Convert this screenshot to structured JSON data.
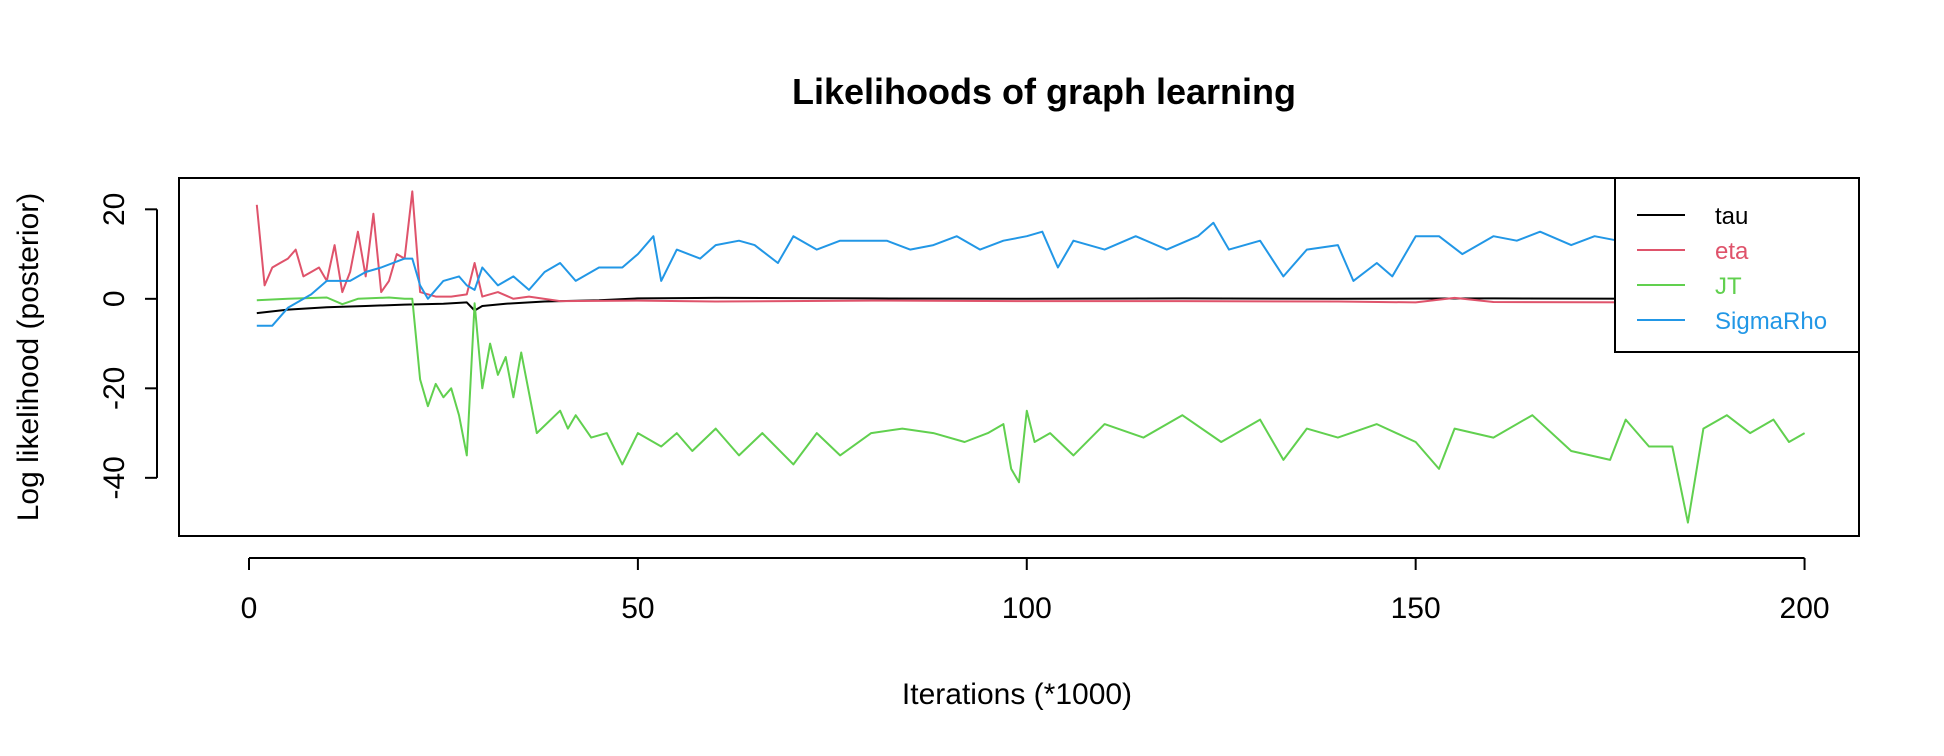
{
  "chart_data": {
    "type": "line",
    "title": "Likelihoods of graph learning",
    "xlabel": "Iterations (*1000)",
    "ylabel": "Log likelihood (posterior)",
    "xlim": [
      -9,
      207
    ],
    "ylim": [
      -53,
      27
    ],
    "x_ticks": [
      0,
      50,
      100,
      150,
      200
    ],
    "y_ticks": [
      20,
      0,
      -20,
      -40
    ],
    "grid": false,
    "legend_position": "top-right",
    "series": [
      {
        "name": "tau",
        "color": "#000000",
        "keypoints": [
          [
            1,
            -3.2
          ],
          [
            5,
            -2.4
          ],
          [
            10,
            -1.9
          ],
          [
            15,
            -1.6
          ],
          [
            20,
            -1.3
          ],
          [
            25,
            -1.1
          ],
          [
            28,
            -0.8
          ],
          [
            29,
            -2.6
          ],
          [
            30,
            -1.6
          ],
          [
            33,
            -1.1
          ],
          [
            38,
            -0.6
          ],
          [
            45,
            -0.3
          ],
          [
            50,
            0.1
          ],
          [
            60,
            0.2
          ],
          [
            80,
            0.1
          ],
          [
            100,
            0.0
          ],
          [
            120,
            0.1
          ],
          [
            140,
            0.0
          ],
          [
            160,
            0.1
          ],
          [
            180,
            0.0
          ],
          [
            200,
            0.0
          ]
        ]
      },
      {
        "name": "eta",
        "color": "#DF536B",
        "keypoints": [
          [
            1,
            21
          ],
          [
            2,
            3
          ],
          [
            3,
            7
          ],
          [
            4,
            8
          ],
          [
            5,
            9
          ],
          [
            6,
            11
          ],
          [
            7,
            5
          ],
          [
            8,
            6
          ],
          [
            9,
            7
          ],
          [
            10,
            4
          ],
          [
            11,
            12
          ],
          [
            12,
            1.5
          ],
          [
            13,
            6
          ],
          [
            14,
            15
          ],
          [
            15,
            5
          ],
          [
            16,
            19
          ],
          [
            17,
            1.5
          ],
          [
            18,
            4
          ],
          [
            19,
            10
          ],
          [
            20,
            9
          ],
          [
            21,
            24
          ],
          [
            22,
            1.5
          ],
          [
            24,
            0.5
          ],
          [
            26,
            0.5
          ],
          [
            28,
            1
          ],
          [
            29,
            8
          ],
          [
            30,
            0.5
          ],
          [
            32,
            1.5
          ],
          [
            34,
            0
          ],
          [
            36,
            0.5
          ],
          [
            40,
            -0.5
          ],
          [
            50,
            -0.4
          ],
          [
            60,
            -0.6
          ],
          [
            80,
            -0.4
          ],
          [
            100,
            -0.5
          ],
          [
            120,
            -0.5
          ],
          [
            140,
            -0.6
          ],
          [
            150,
            -0.8
          ],
          [
            155,
            0.2
          ],
          [
            160,
            -0.7
          ],
          [
            180,
            -0.8
          ],
          [
            200,
            -0.7
          ]
        ]
      },
      {
        "name": "JT",
        "color": "#61D04F",
        "keypoints": [
          [
            1,
            -0.3
          ],
          [
            5,
            0
          ],
          [
            10,
            0.3
          ],
          [
            12,
            -1.2
          ],
          [
            14,
            0
          ],
          [
            18,
            0.3
          ],
          [
            20,
            0
          ],
          [
            21,
            0
          ],
          [
            22,
            -18
          ],
          [
            23,
            -24
          ],
          [
            24,
            -19
          ],
          [
            25,
            -22
          ],
          [
            26,
            -20
          ],
          [
            27,
            -26
          ],
          [
            28,
            -35
          ],
          [
            29,
            -1
          ],
          [
            30,
            -20
          ],
          [
            31,
            -10
          ],
          [
            32,
            -17
          ],
          [
            33,
            -13
          ],
          [
            34,
            -22
          ],
          [
            35,
            -12
          ],
          [
            37,
            -30
          ],
          [
            40,
            -25
          ],
          [
            41,
            -29
          ],
          [
            42,
            -26
          ],
          [
            44,
            -31
          ],
          [
            46,
            -30
          ],
          [
            48,
            -37
          ],
          [
            50,
            -30
          ],
          [
            53,
            -33
          ],
          [
            55,
            -30
          ],
          [
            57,
            -34
          ],
          [
            60,
            -29
          ],
          [
            63,
            -35
          ],
          [
            66,
            -30
          ],
          [
            70,
            -37
          ],
          [
            73,
            -30
          ],
          [
            76,
            -35
          ],
          [
            80,
            -30
          ],
          [
            84,
            -29
          ],
          [
            88,
            -30
          ],
          [
            92,
            -32
          ],
          [
            95,
            -30
          ],
          [
            97,
            -28
          ],
          [
            98,
            -38
          ],
          [
            99,
            -41
          ],
          [
            100,
            -25
          ],
          [
            101,
            -32
          ],
          [
            103,
            -30
          ],
          [
            106,
            -35
          ],
          [
            110,
            -28
          ],
          [
            115,
            -31
          ],
          [
            120,
            -26
          ],
          [
            125,
            -32
          ],
          [
            130,
            -27
          ],
          [
            133,
            -36
          ],
          [
            136,
            -29
          ],
          [
            140,
            -31
          ],
          [
            145,
            -28
          ],
          [
            150,
            -32
          ],
          [
            153,
            -38
          ],
          [
            155,
            -29
          ],
          [
            160,
            -31
          ],
          [
            165,
            -26
          ],
          [
            170,
            -34
          ],
          [
            175,
            -36
          ],
          [
            177,
            -27
          ],
          [
            180,
            -33
          ],
          [
            183,
            -33
          ],
          [
            185,
            -50
          ],
          [
            187,
            -29
          ],
          [
            190,
            -26
          ],
          [
            193,
            -30
          ],
          [
            196,
            -27
          ],
          [
            198,
            -32
          ],
          [
            200,
            -30
          ]
        ]
      },
      {
        "name": "SigmaRho",
        "color": "#2297E6",
        "keypoints": [
          [
            1,
            -6
          ],
          [
            3,
            -6
          ],
          [
            5,
            -2
          ],
          [
            8,
            1
          ],
          [
            10,
            4
          ],
          [
            13,
            4
          ],
          [
            15,
            6
          ],
          [
            17,
            7
          ],
          [
            20,
            9
          ],
          [
            21,
            9
          ],
          [
            22,
            3
          ],
          [
            23,
            0
          ],
          [
            25,
            4
          ],
          [
            27,
            5
          ],
          [
            28,
            3
          ],
          [
            29,
            2
          ],
          [
            30,
            7
          ],
          [
            32,
            3
          ],
          [
            34,
            5
          ],
          [
            36,
            2
          ],
          [
            38,
            6
          ],
          [
            40,
            8
          ],
          [
            42,
            4
          ],
          [
            45,
            7
          ],
          [
            48,
            7
          ],
          [
            50,
            10
          ],
          [
            52,
            14
          ],
          [
            53,
            4
          ],
          [
            55,
            11
          ],
          [
            58,
            9
          ],
          [
            60,
            12
          ],
          [
            63,
            13
          ],
          [
            65,
            12
          ],
          [
            68,
            8
          ],
          [
            70,
            14
          ],
          [
            73,
            11
          ],
          [
            76,
            13
          ],
          [
            79,
            13
          ],
          [
            82,
            13
          ],
          [
            85,
            11
          ],
          [
            88,
            12
          ],
          [
            91,
            14
          ],
          [
            94,
            11
          ],
          [
            97,
            13
          ],
          [
            100,
            14
          ],
          [
            102,
            15
          ],
          [
            104,
            7
          ],
          [
            106,
            13
          ],
          [
            110,
            11
          ],
          [
            114,
            14
          ],
          [
            118,
            11
          ],
          [
            122,
            14
          ],
          [
            124,
            17
          ],
          [
            126,
            11
          ],
          [
            130,
            13
          ],
          [
            133,
            5
          ],
          [
            136,
            11
          ],
          [
            140,
            12
          ],
          [
            142,
            4
          ],
          [
            145,
            8
          ],
          [
            147,
            5
          ],
          [
            150,
            14
          ],
          [
            153,
            14
          ],
          [
            156,
            10
          ],
          [
            160,
            14
          ],
          [
            163,
            13
          ],
          [
            166,
            15
          ],
          [
            170,
            12
          ],
          [
            173,
            14
          ],
          [
            176,
            13
          ],
          [
            180,
            14
          ],
          [
            185,
            14
          ],
          [
            190,
            14
          ],
          [
            195,
            13
          ],
          [
            200,
            14
          ]
        ]
      }
    ]
  }
}
